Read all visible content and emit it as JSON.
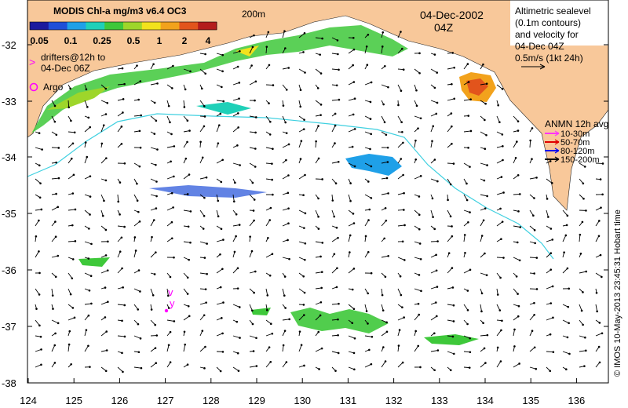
{
  "colorbar": {
    "title": "MODIS Chl-a mg/m3 v6.4 OC3",
    "ticks": [
      "0.05",
      "0.1",
      "0.25",
      "0.5",
      "1",
      "2",
      "4"
    ],
    "colors": [
      "#1c1a9e",
      "#1f4fd8",
      "#1fa0e8",
      "#1fd0b8",
      "#3ec83a",
      "#9ed62a",
      "#f2e21c",
      "#f2a21c",
      "#e2541c",
      "#b41c1c"
    ]
  },
  "legend_left": {
    "drifters_marker": ">",
    "drifters_line1": "drifters@12h to",
    "drifters_line2": "04-Dec 06Z",
    "argo_label": "Argo"
  },
  "contour_label": "200m",
  "datetime": {
    "date": "04-Dec-2002",
    "time": "04Z"
  },
  "altimetry_note": [
    "Altimetric sealevel",
    "(0.1m contours)",
    "and velocity for",
    "04-Dec 04Z",
    "0.5m/s (1kt 24h)"
  ],
  "anmn_legend": {
    "title": "ANMN 12h avg",
    "items": [
      {
        "label": "10-30m",
        "color": "#ff33ff"
      },
      {
        "label": "50-70m",
        "color": "#e00000"
      },
      {
        "label": "80-120m",
        "color": "#0000ee"
      },
      {
        "label": "150-200m",
        "color": "#000000"
      }
    ]
  },
  "side_credit": "© IMOS 10-May-2013 23:45:31 Hobart time",
  "axes": {
    "y_ticks": [
      "-32",
      "-33",
      "-34",
      "-35",
      "-36",
      "-37",
      "-38"
    ],
    "x_ticks": [
      "124",
      "125",
      "126",
      "127",
      "128",
      "129",
      "130",
      "131",
      "132",
      "133",
      "134",
      "135",
      "136"
    ]
  },
  "drifter_marks": [
    "v",
    "y"
  ],
  "colors": {
    "land": "#f8c89a",
    "ocean": "#ffffff",
    "contour": "#3fd0e0",
    "drifter": "#ff00ff"
  }
}
